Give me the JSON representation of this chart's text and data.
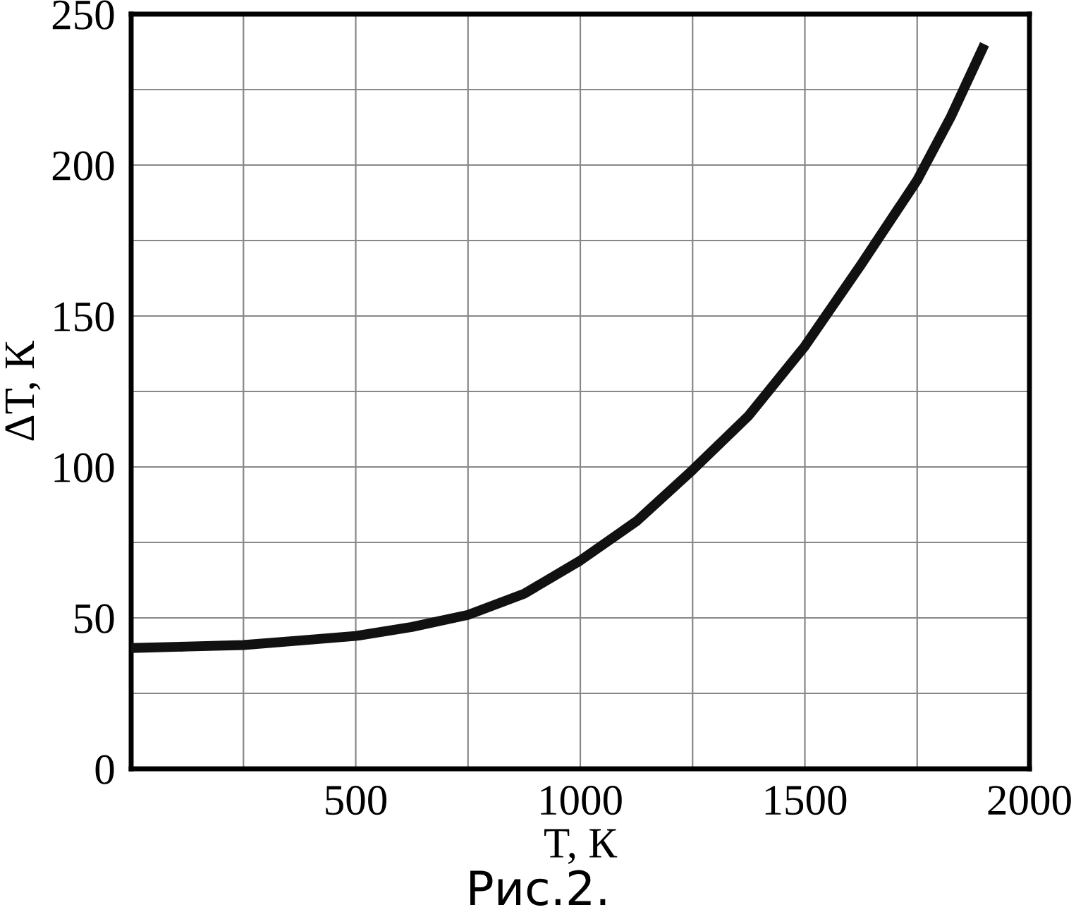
{
  "chart_data": {
    "type": "line",
    "xlabel": "T, К",
    "ylabel": "ΔT, К",
    "annotations": [
      "Рис.2."
    ],
    "x": [
      0,
      125,
      250,
      375,
      500,
      625,
      750,
      875,
      1000,
      1125,
      1250,
      1375,
      1500,
      1625,
      1750,
      1825,
      1900
    ],
    "series": [
      {
        "color": "#111111",
        "values": [
          40,
          40.5,
          41,
          42.5,
          44,
          47,
          51,
          58,
          69,
          82,
          99,
          117,
          140,
          167,
          195,
          216,
          240
        ]
      }
    ],
    "xlim": [
      0,
      2000
    ],
    "ylim": [
      0,
      250
    ],
    "xticks": [
      {
        "value": 0,
        "label": null
      },
      {
        "value": 250,
        "label": null
      },
      500,
      {
        "value": 750,
        "label": null
      },
      1000,
      {
        "value": 1250,
        "label": null
      },
      1500,
      {
        "value": 1750,
        "label": null
      },
      2000
    ],
    "yticks": [
      0,
      {
        "value": 25,
        "label": null
      },
      50,
      {
        "value": 75,
        "label": null
      },
      100,
      {
        "value": 125,
        "label": null
      },
      150,
      {
        "value": 175,
        "label": null
      },
      200,
      {
        "value": 225,
        "label": null
      },
      250
    ],
    "grid": true,
    "marker": "none",
    "line_style": "solid"
  }
}
